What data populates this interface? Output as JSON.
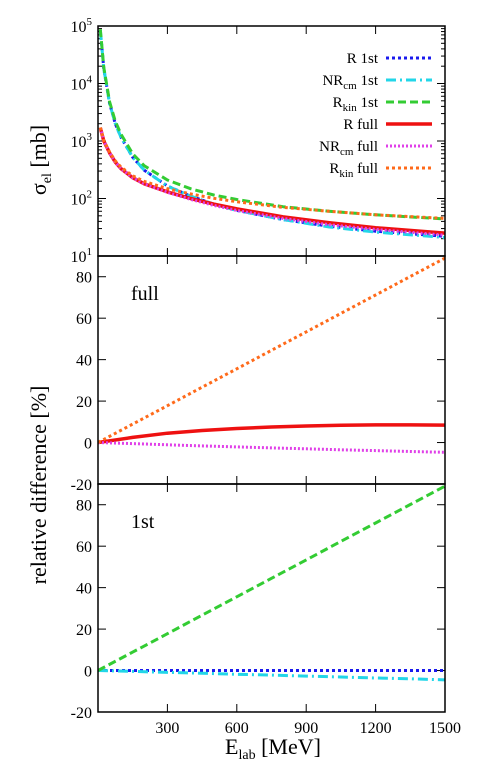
{
  "colors": {
    "R 1st": "#1a1aee",
    "NRcm 1st": "#22d6e8",
    "Rkin 1st": "#33cc33",
    "R full": "#ee1111",
    "NRcm full": "#e040e8",
    "Rkin full": "#ff6a1a"
  },
  "chart_data": [
    {
      "type": "line",
      "panel": "top",
      "ylabel_main": "σ",
      "ylabel_sub": "el",
      "ylabel_unit": "[mb]",
      "yscale": "log",
      "ylim": [
        10,
        100000
      ],
      "xlim": [
        0,
        1500
      ],
      "ytick_labels": [
        {
          "base": "10",
          "exp": "1",
          "value": 10
        },
        {
          "base": "10",
          "exp": "2",
          "value": 100
        },
        {
          "base": "10",
          "exp": "3",
          "value": 1000
        },
        {
          "base": "10",
          "exp": "4",
          "value": 10000
        },
        {
          "base": "10",
          "exp": "5",
          "value": 100000
        }
      ],
      "legend": [
        {
          "main": "R",
          "sub": "",
          "rest": " 1st",
          "series": "R 1st",
          "dash": "dot"
        },
        {
          "main": "NR",
          "sub": "cm",
          "rest": " 1st",
          "series": "NRcm 1st",
          "dash": "dashdot"
        },
        {
          "main": "R",
          "sub": "kin",
          "rest": " 1st",
          "series": "Rkin 1st",
          "dash": "dash"
        },
        {
          "main": "R",
          "sub": "",
          "rest": " full",
          "series": "R full",
          "dash": "solid"
        },
        {
          "main": "NR",
          "sub": "cm",
          "rest": " full",
          "series": "NRcm full",
          "dash": "dot"
        },
        {
          "main": "R",
          "sub": "kin",
          "rest": " full",
          "series": "Rkin full",
          "dash": "dot"
        }
      ],
      "x": [
        10,
        25,
        50,
        75,
        100,
        150,
        200,
        300,
        400,
        500,
        600,
        800,
        1000,
        1200,
        1500
      ],
      "series": [
        {
          "name": "R 1st",
          "y": [
            85000,
            18000,
            4500,
            2000,
            1150,
            520,
            310,
            165,
            110,
            80,
            62,
            43,
            33,
            27,
            22
          ]
        },
        {
          "name": "NRcm 1st",
          "y": [
            85000,
            18000,
            4500,
            2000,
            1150,
            520,
            310,
            165,
            110,
            80,
            62,
            43,
            32,
            26,
            21
          ]
        },
        {
          "name": "Rkin 1st",
          "y": [
            88000,
            19000,
            4800,
            2200,
            1300,
            600,
            370,
            210,
            148,
            115,
            96,
            72,
            60,
            52,
            44
          ]
        },
        {
          "name": "R full",
          "y": [
            1700,
            1000,
            620,
            430,
            330,
            230,
            180,
            130,
            100,
            80,
            66,
            48,
            38,
            31,
            25
          ]
        },
        {
          "name": "NRcm full",
          "y": [
            1700,
            1000,
            620,
            430,
            330,
            230,
            180,
            128,
            97,
            76,
            62,
            45,
            35,
            29,
            23
          ]
        },
        {
          "name": "Rkin full",
          "y": [
            1720,
            1020,
            640,
            450,
            350,
            248,
            198,
            148,
            120,
            101,
            88,
            70,
            60,
            52,
            45
          ]
        }
      ]
    },
    {
      "type": "line",
      "panel": "middle",
      "annotation": "full",
      "ylim": [
        -20,
        90
      ],
      "xlim": [
        0,
        1500
      ],
      "ytick_labels": [
        "-20",
        "0",
        "20",
        "40",
        "60",
        "80"
      ],
      "x": [
        0,
        150,
        300,
        450,
        600,
        750,
        900,
        1050,
        1200,
        1350,
        1500
      ],
      "series": [
        {
          "name": "R full",
          "y": [
            0,
            2.5,
            4.5,
            5.8,
            6.8,
            7.5,
            8.0,
            8.3,
            8.5,
            8.5,
            8.4
          ]
        },
        {
          "name": "NRcm full",
          "y": [
            0,
            -0.5,
            -1.1,
            -1.6,
            -2.1,
            -2.6,
            -3.0,
            -3.5,
            -3.9,
            -4.3,
            -4.7
          ]
        },
        {
          "name": "Rkin full",
          "y": [
            0,
            8.9,
            17.8,
            26.7,
            35.6,
            44.5,
            53.4,
            62.3,
            71.2,
            80.1,
            89
          ]
        }
      ]
    },
    {
      "type": "line",
      "panel": "bottom",
      "annotation": "1st",
      "ylim": [
        -20,
        90
      ],
      "xlim": [
        0,
        1500
      ],
      "ytick_labels": [
        "-20",
        "0",
        "20",
        "40",
        "60",
        "80"
      ],
      "xtick_labels": [
        "300",
        "600",
        "900",
        "1200",
        "1500"
      ],
      "xticks": [
        300,
        600,
        900,
        1200,
        1500
      ],
      "xlabel_main": "E",
      "xlabel_sub": "lab",
      "xlabel_unit": "[MeV]",
      "x": [
        0,
        150,
        300,
        450,
        600,
        750,
        900,
        1050,
        1200,
        1350,
        1500
      ],
      "series": [
        {
          "name": "R 1st",
          "y": [
            0,
            0,
            0,
            0,
            0,
            0,
            0,
            0,
            0,
            0,
            0
          ]
        },
        {
          "name": "NRcm 1st",
          "y": [
            0,
            -0.4,
            -0.9,
            -1.3,
            -1.8,
            -2.2,
            -2.7,
            -3.1,
            -3.6,
            -4.0,
            -4.5
          ]
        },
        {
          "name": "Rkin 1st",
          "y": [
            0,
            8.9,
            17.8,
            26.7,
            35.6,
            44.5,
            53.4,
            62.3,
            71.2,
            80.1,
            89
          ]
        }
      ]
    }
  ],
  "shared_ylabel": "relative difference [%]"
}
